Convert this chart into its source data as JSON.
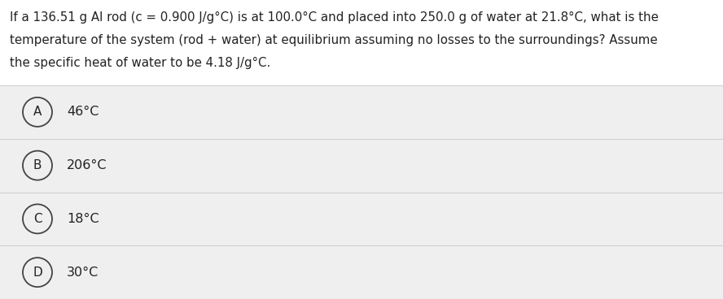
{
  "question_lines": [
    "If a 136.51 g Al rod (c = 0.900 J/g°C) is at 100.0°C and placed into 250.0 g of water at 21.8°C, what is the",
    "temperature of the system (rod + water) at equilibrium assuming no losses to the surroundings? Assume",
    "the specific heat of water to be 4.18 J/g°C."
  ],
  "options": [
    {
      "label": "A",
      "text": "46°C"
    },
    {
      "label": "B",
      "text": "206°C"
    },
    {
      "label": "C",
      "text": "18°C"
    },
    {
      "label": "D",
      "text": "30°C"
    }
  ],
  "white_bg": "#ffffff",
  "option_bg": "#efefef",
  "circle_edge": "#444444",
  "text_color": "#222222",
  "separator_color": "#d0d0d0",
  "question_fontsize": 10.8,
  "option_fontsize": 11.5,
  "label_fontsize": 11.0,
  "fig_width": 8.88,
  "fig_height": 3.68,
  "dpi": 100
}
